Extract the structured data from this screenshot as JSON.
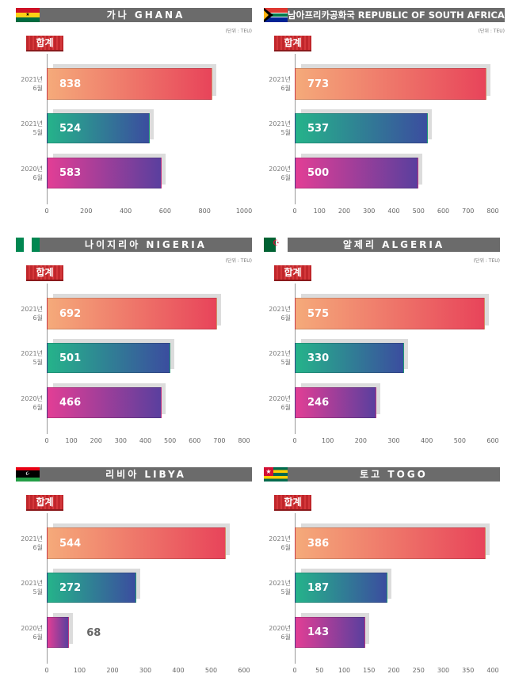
{
  "unit_label": "(단위 : TEU)",
  "badge_label": "합계",
  "categories": [
    [
      "2021년",
      "6월"
    ],
    [
      "2021년",
      "5월"
    ],
    [
      "2020년",
      "6월"
    ]
  ],
  "colors": {
    "bar1": [
      "#f5aa7a",
      "#e8445a"
    ],
    "bar2": [
      "#25b38a",
      "#3b4d9f"
    ],
    "bar3": [
      "#e23e95",
      "#5a3f9e"
    ],
    "header": "#6b6b6b"
  },
  "chart_data": [
    {
      "type": "bar",
      "title": "가나 GHANA",
      "flag": "ghana",
      "xlim": [
        0,
        1000
      ],
      "ticks": [
        0,
        200,
        400,
        600,
        800,
        1000
      ],
      "values": [
        838,
        524,
        583
      ],
      "unit": true
    },
    {
      "type": "bar",
      "title": "남아프리카공화국 REPUBLIC OF SOUTH AFRICA",
      "flag": "south-africa",
      "xlim": [
        0,
        800
      ],
      "ticks": [
        0,
        100,
        200,
        300,
        400,
        500,
        600,
        700,
        800
      ],
      "values": [
        773,
        537,
        500
      ],
      "unit": true
    },
    {
      "type": "bar",
      "title": "나이지리아 NIGERIA",
      "flag": "nigeria",
      "xlim": [
        0,
        800
      ],
      "ticks": [
        0,
        100,
        200,
        300,
        400,
        500,
        600,
        700,
        800
      ],
      "values": [
        692,
        501,
        466
      ],
      "unit": true
    },
    {
      "type": "bar",
      "title": "알제리 ALGERIA",
      "flag": "algeria",
      "xlim": [
        0,
        600
      ],
      "ticks": [
        0,
        100,
        200,
        300,
        400,
        500,
        600
      ],
      "values": [
        575,
        330,
        246
      ],
      "unit": true
    },
    {
      "type": "bar",
      "title": "리비아 LIBYA",
      "flag": "libya",
      "xlim": [
        0,
        600
      ],
      "ticks": [
        0,
        100,
        200,
        300,
        400,
        500,
        600
      ],
      "values": [
        544,
        272,
        68
      ],
      "unit": false
    },
    {
      "type": "bar",
      "title": "토고 TOGO",
      "flag": "togo",
      "xlim": [
        0,
        400
      ],
      "ticks": [
        0,
        50,
        100,
        150,
        200,
        250,
        300,
        350,
        400
      ],
      "values": [
        386,
        187,
        143
      ],
      "unit": false
    }
  ]
}
